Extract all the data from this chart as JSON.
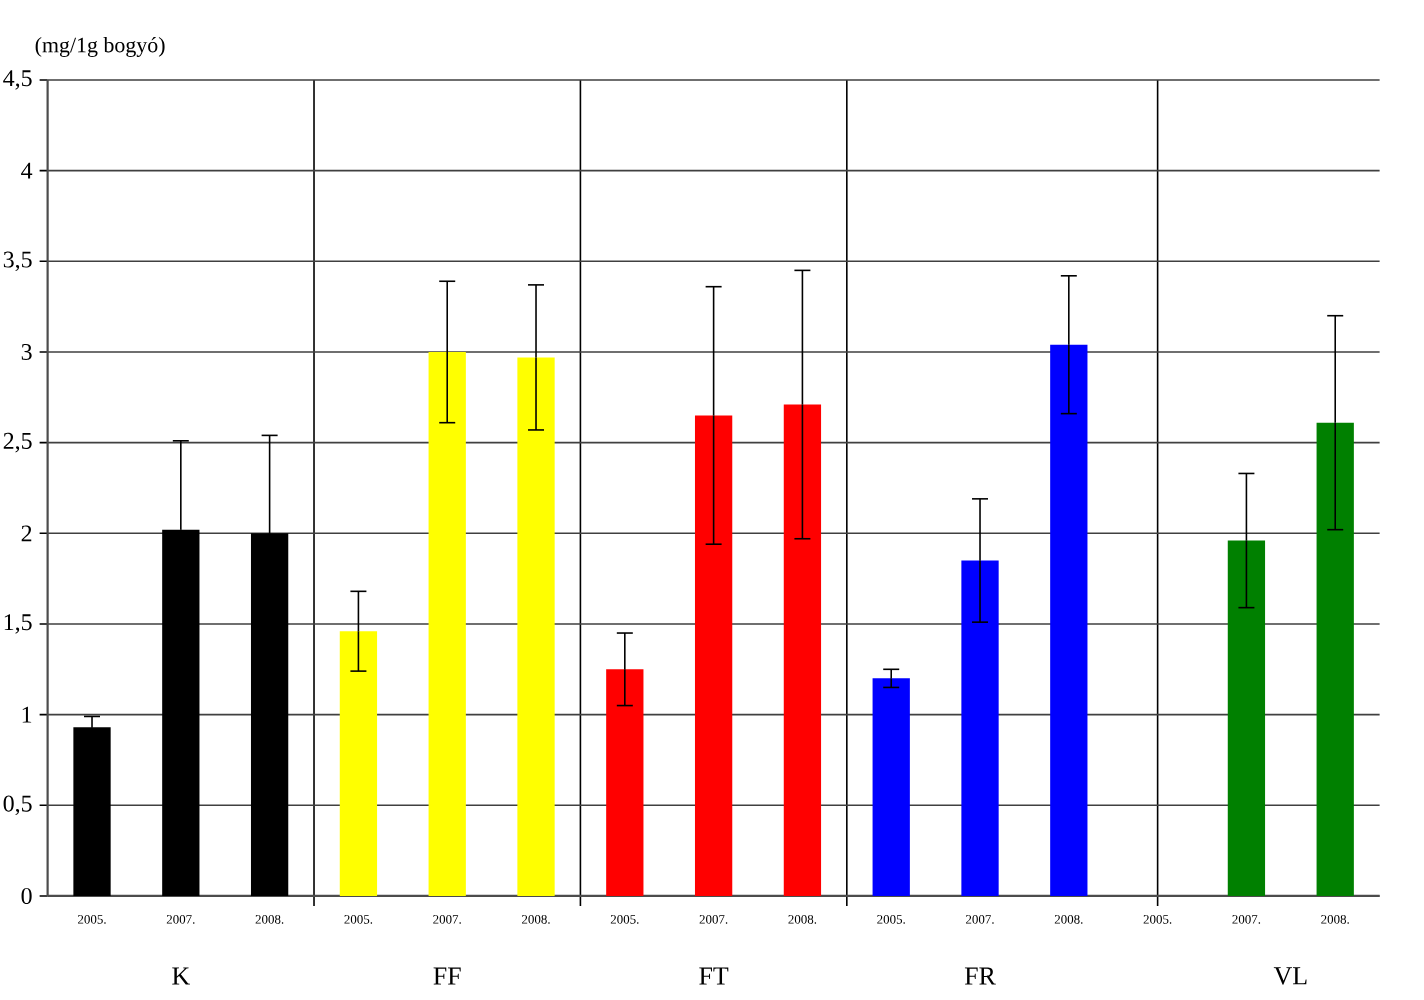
{
  "chart_data": {
    "type": "bar",
    "ylabel": "(mg/1g bogyó)",
    "categories": [
      "2005.",
      "2007.",
      "2008.",
      "2005.",
      "2007.",
      "2008.",
      "2005.",
      "2007.",
      "2008.",
      "2005.",
      "2007.",
      "2008.",
      "2005.",
      "2007.",
      "2008."
    ],
    "series": [
      {
        "name": "K",
        "color": "#000000",
        "values": [
          0.93,
          2.02,
          2.0,
          null,
          null,
          null,
          null,
          null,
          null,
          null,
          null,
          null,
          null,
          null,
          null
        ],
        "errors": [
          0.06,
          0.49,
          0.54,
          null,
          null,
          null,
          null,
          null,
          null,
          null,
          null,
          null,
          null,
          null,
          null
        ]
      },
      {
        "name": "FF",
        "color": "#ffff00",
        "values": [
          null,
          null,
          null,
          1.46,
          3.0,
          2.97,
          null,
          null,
          null,
          null,
          null,
          null,
          null,
          null,
          null
        ],
        "errors": [
          null,
          null,
          null,
          0.22,
          0.39,
          0.4,
          null,
          null,
          null,
          null,
          null,
          null,
          null,
          null,
          null
        ]
      },
      {
        "name": "FT",
        "color": "#ff0000",
        "values": [
          null,
          null,
          null,
          null,
          null,
          null,
          1.25,
          2.65,
          2.71,
          null,
          null,
          null,
          null,
          null,
          null
        ],
        "errors": [
          null,
          null,
          null,
          null,
          null,
          null,
          0.2,
          0.71,
          0.74,
          null,
          null,
          null,
          null,
          null,
          null
        ]
      },
      {
        "name": "FR",
        "color": "#0000ff",
        "values": [
          null,
          null,
          null,
          null,
          null,
          null,
          null,
          null,
          null,
          1.2,
          1.85,
          3.04,
          null,
          null,
          null
        ],
        "errors": [
          null,
          null,
          null,
          null,
          null,
          null,
          null,
          null,
          null,
          0.05,
          0.34,
          0.38,
          null,
          null,
          null
        ]
      },
      {
        "name": "VL",
        "color": "#008000",
        "values": [
          null,
          null,
          null,
          null,
          null,
          null,
          null,
          null,
          null,
          null,
          null,
          null,
          null,
          1.96,
          2.61
        ],
        "errors": [
          null,
          null,
          null,
          null,
          null,
          null,
          null,
          null,
          null,
          null,
          null,
          null,
          null,
          0.37,
          0.59
        ]
      }
    ],
    "ylim": [
      0,
      4.5
    ],
    "yticks": [
      0,
      {
        "value": 0.5,
        "label": "0,5"
      },
      1,
      {
        "value": 1.5,
        "label": "1,5"
      },
      2,
      {
        "value": 2.5,
        "label": "2,5"
      },
      3,
      {
        "value": 3.5,
        "label": "3,5"
      },
      4,
      {
        "value": 4.5,
        "label": "4,5"
      }
    ],
    "grid": true
  }
}
